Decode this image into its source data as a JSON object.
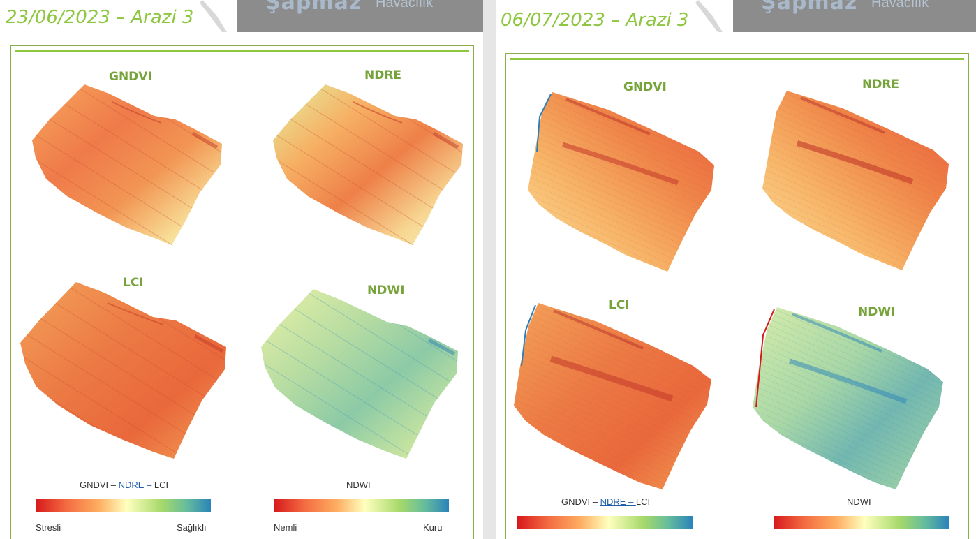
{
  "pages": [
    {
      "title": "23/06/2023 – Arazi 3",
      "watermark": "Şapmaz",
      "watermark_sub": "Havacılık",
      "maps": [
        "GNDVI",
        "NDRE",
        "LCI",
        "NDWI"
      ],
      "legend_left": {
        "caption_a": "GNDVI – ",
        "caption_b": "NDRE – ",
        "caption_c": "LCI",
        "low": "Stresli",
        "high": "Sağlıklı"
      },
      "legend_right": {
        "caption": "NDWI",
        "low": "Nemli",
        "high": "Kuru"
      }
    },
    {
      "title": "06/07/2023 – Arazi 3",
      "watermark": "Şapmaz",
      "watermark_sub": "Havacılık",
      "maps": [
        "GNDVI",
        "NDRE",
        "LCI",
        "NDWI"
      ],
      "legend_left": {
        "caption_a": "GNDVI – ",
        "caption_b": "NDRE – ",
        "caption_c": "LCI"
      },
      "legend_right": {
        "caption": "NDWI"
      }
    }
  ],
  "colors": {
    "accent_green": "#8dc63f",
    "label_green": "#76a33a",
    "banner_gray": "#8c8c8c"
  }
}
